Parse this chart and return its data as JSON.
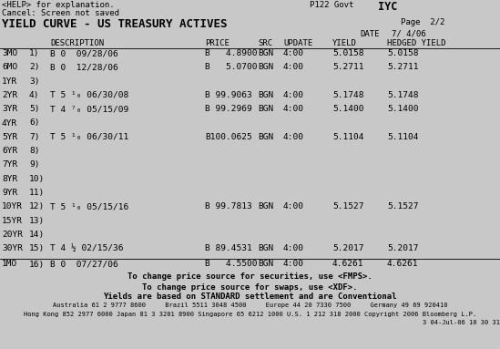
{
  "bg_color": "#c8c8c8",
  "text_color": "#000000",
  "header_line1_left": "<HELP> for explanation.",
  "header_line1_right": "P122 Govt   IYC",
  "header_line2": "Cancel: Screen not saved",
  "title": "YIELD CURVE - US TREASURY ACTIVES",
  "page_info": "Page  2/2",
  "date_label": "DATE",
  "date_value": "7/ 4/06",
  "rows": [
    {
      "mat": "3MO",
      "num": "1)",
      "desc": "B 0  09/28/06",
      "price": "B   4.8900",
      "src": "BGN",
      "update": "4:00",
      "yield": "5.0158",
      "hy": "5.0158"
    },
    {
      "mat": "6MO",
      "num": "2)",
      "desc": "B 0  12/28/06",
      "price": "B   5.0700",
      "src": "BGN",
      "update": "4:00",
      "yield": "5.2711",
      "hy": "5.2711"
    },
    {
      "mat": "1YR",
      "num": "3)",
      "desc": "",
      "price": "",
      "src": "",
      "update": "",
      "yield": "",
      "hy": ""
    },
    {
      "mat": "2YR",
      "num": "4)",
      "desc": "T 5 ¹₀ 06/30/08",
      "price": "B 99.9063",
      "src": "BGN",
      "update": "4:00",
      "yield": "5.1748",
      "hy": "5.1748"
    },
    {
      "mat": "3YR",
      "num": "5)",
      "desc": "T 4 ⁷₀ 05/15/09",
      "price": "B 99.2969",
      "src": "BGN",
      "update": "4:00",
      "yield": "5.1400",
      "hy": "5.1400"
    },
    {
      "mat": "4YR",
      "num": "6)",
      "desc": "",
      "price": "",
      "src": "",
      "update": "",
      "yield": "",
      "hy": ""
    },
    {
      "mat": "5YR",
      "num": "7)",
      "desc": "T 5 ¹₀ 06/30/11",
      "price": "B100.0625",
      "src": "BGN",
      "update": "4:00",
      "yield": "5.1104",
      "hy": "5.1104"
    },
    {
      "mat": "6YR",
      "num": "8)",
      "desc": "",
      "price": "",
      "src": "",
      "update": "",
      "yield": "",
      "hy": ""
    },
    {
      "mat": "7YR",
      "num": "9)",
      "desc": "",
      "price": "",
      "src": "",
      "update": "",
      "yield": "",
      "hy": ""
    },
    {
      "mat": "8YR",
      "num": "10)",
      "desc": "",
      "price": "",
      "src": "",
      "update": "",
      "yield": "",
      "hy": ""
    },
    {
      "mat": "9YR",
      "num": "11)",
      "desc": "",
      "price": "",
      "src": "",
      "update": "",
      "yield": "",
      "hy": ""
    },
    {
      "mat": "10YR",
      "num": "12)",
      "desc": "T 5 ¹₀ 05/15/16",
      "price": "B 99.7813",
      "src": "BGN",
      "update": "4:00",
      "yield": "5.1527",
      "hy": "5.1527"
    },
    {
      "mat": "15YR",
      "num": "13)",
      "desc": "",
      "price": "",
      "src": "",
      "update": "",
      "yield": "",
      "hy": ""
    },
    {
      "mat": "20YR",
      "num": "14)",
      "desc": "",
      "price": "",
      "src": "",
      "update": "",
      "yield": "",
      "hy": ""
    },
    {
      "mat": "30YR",
      "num": "15)",
      "desc": "T 4 ½ 02/15/36",
      "price": "B 89.4531",
      "src": "BGN",
      "update": "4:00",
      "yield": "5.2017",
      "hy": "5.2017"
    }
  ],
  "sep_row": {
    "mat": "1MO",
    "num": "16)",
    "desc": "B 0  07/27/06",
    "price": "B   4.5500",
    "src": "BGN",
    "update": "4:00",
    "yield": "4.6261",
    "hy": "4.6261"
  },
  "footer1": "To change price source for securities, use <FMPS>.",
  "footer2": "To change price source for swaps, use <XDF>.",
  "footer3": "Yields are based on STANDARD settlement and are Conventional",
  "footer_sm1": "Australia 61 2 9777 8600     Brazil 5511 3048 4500     Europe 44 20 7330 7500     Germany 49 69 920410",
  "footer_sm2": "Hong Kong 852 2977 6000 Japan 81 3 3201 8900 Singapore 65 6212 1000 U.S. 1 212 318 2000 Copyright 2006 Bloomberg L.P.",
  "footer_sm3": "3 04-Jul-06 10 30 31",
  "col_x": {
    "mat": 2,
    "num": 32,
    "desc": 55,
    "price": 225,
    "src": 283,
    "update": 311,
    "yield": 365,
    "hy": 425
  },
  "header_col_x": {
    "desc": 55,
    "price": 225,
    "src": 283,
    "update": 311,
    "yield": 365,
    "hy": 425
  }
}
